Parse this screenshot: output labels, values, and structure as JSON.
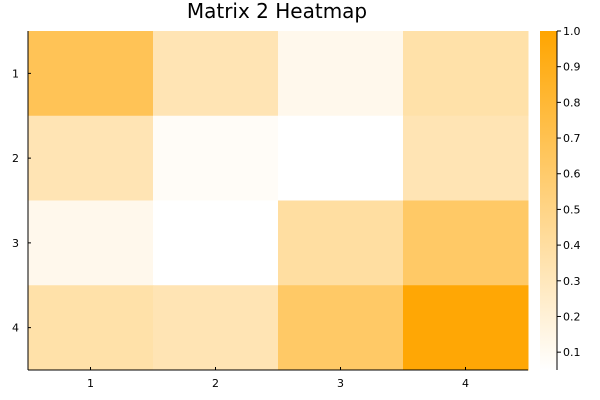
{
  "chart_data": {
    "type": "heatmap",
    "title": "Matrix 2 Heatmap",
    "xlabel": "",
    "ylabel": "",
    "x_categories": [
      "1",
      "2",
      "3",
      "4"
    ],
    "y_categories": [
      "1",
      "2",
      "3",
      "4"
    ],
    "values": [
      [
        0.68,
        0.33,
        0.12,
        0.37
      ],
      [
        0.33,
        0.08,
        0.05,
        0.33
      ],
      [
        0.12,
        0.05,
        0.4,
        0.62
      ],
      [
        0.37,
        0.33,
        0.62,
        0.98
      ]
    ],
    "colorbar": {
      "range": [
        0.05,
        1.0
      ],
      "ticks": [
        "0.1",
        "0.2",
        "0.3",
        "0.4",
        "0.5",
        "0.6",
        "0.7",
        "0.8",
        "0.9",
        "1.0"
      ],
      "tick_values": [
        0.1,
        0.2,
        0.3,
        0.4,
        0.5,
        0.6,
        0.7,
        0.8,
        0.9,
        1.0
      ]
    },
    "colors": {
      "low": "#ffffff",
      "high": "#ffa500"
    },
    "grid": false,
    "y_axis_inverted": true
  }
}
